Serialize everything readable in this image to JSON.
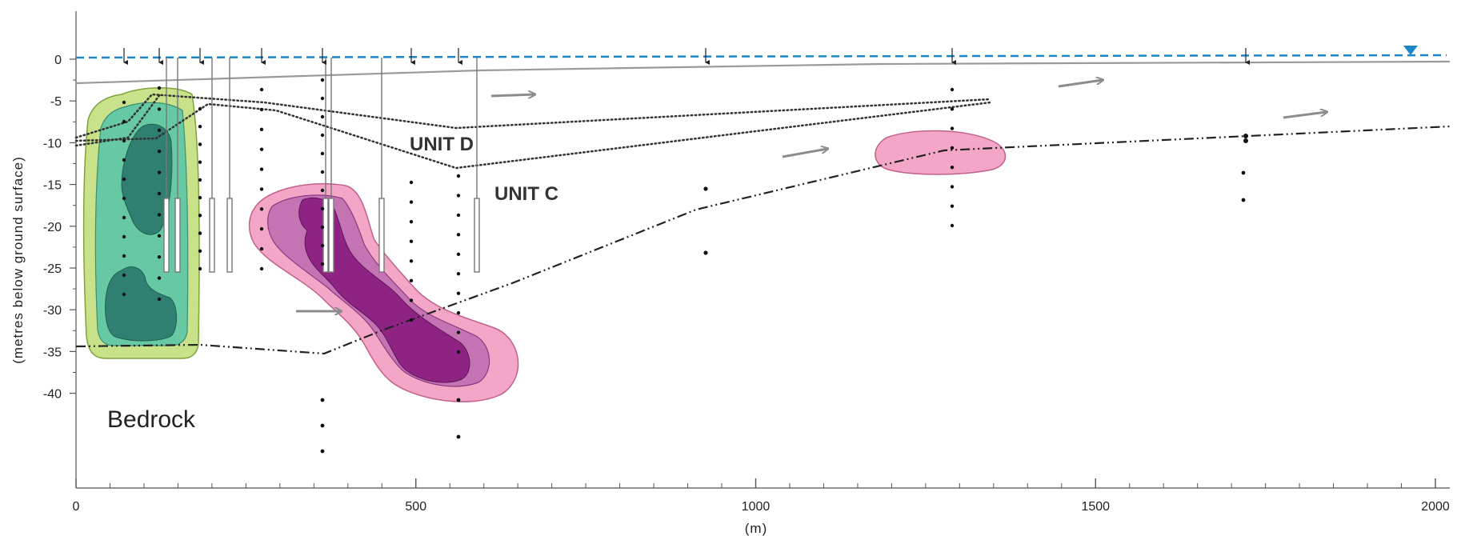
{
  "section": {
    "y_axis_title": "(metres below ground surface)",
    "x_axis_title": "(m)",
    "y_ticks": [
      "0",
      "-5",
      "-10",
      "-15",
      "-20",
      "-25",
      "-30",
      "-35",
      "-40"
    ],
    "x_ticks": [
      "0",
      "500",
      "1000",
      "1500",
      "2000"
    ],
    "unit_labels": [
      "UNIT D",
      "UNIT C"
    ],
    "bedrock_label": "Bedrock"
  },
  "colors": {
    "water_table": "#1a86c8",
    "ground_surface": "#9a9a9a",
    "flow_arrow": "#8c8c8c",
    "green_plume": [
      "#c9e28a",
      "#66c9a3",
      "#2f8070"
    ],
    "pink_plume": [
      "#f3a6c6",
      "#c474b2",
      "#8e2384"
    ]
  }
}
